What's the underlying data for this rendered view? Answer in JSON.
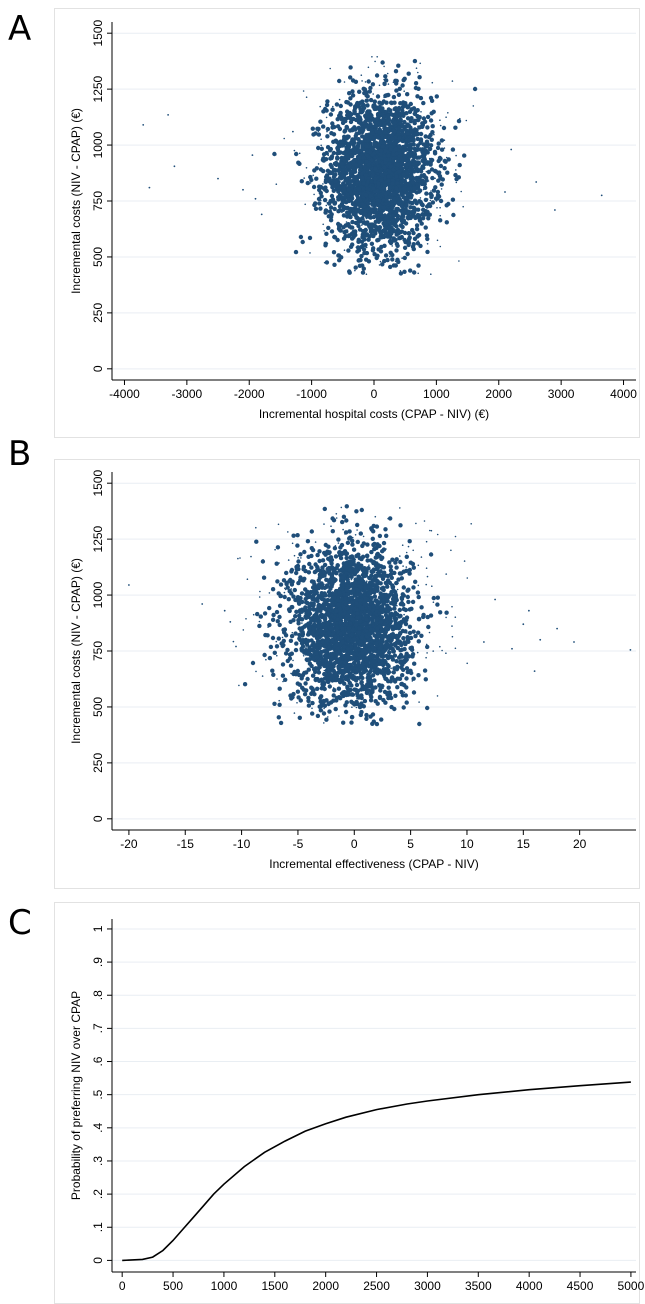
{
  "panels": {
    "a": {
      "letter": "A"
    },
    "b": {
      "letter": "B"
    },
    "c": {
      "letter": "C"
    }
  },
  "colors": {
    "scatter_fill": "#1f4e79",
    "gridline": "#e9eef3",
    "axis": "#000000",
    "curve": "#000000"
  },
  "chart_data": [
    {
      "id": "A",
      "type": "scatter",
      "title": "",
      "xlabel": "Incremental hospital costs (CPAP - NIV) (€)",
      "ylabel": "Incremental costs (NIV - CPAP) (€)",
      "xlim": [
        -4200,
        4200
      ],
      "ylim": [
        -50,
        1550
      ],
      "xticks": [
        -4000,
        -3000,
        -2000,
        -1000,
        0,
        1000,
        2000,
        3000,
        4000
      ],
      "xtick_labels": [
        "-4000",
        "-3000",
        "-2000",
        "-1000",
        "0",
        "1000",
        "2000",
        "3000",
        "4000"
      ],
      "yticks": [
        0,
        250,
        500,
        750,
        1000,
        1250,
        1500
      ],
      "ytick_labels": [
        "0",
        "250",
        "500",
        "750",
        "1000",
        "1250",
        "1500"
      ],
      "grid": true,
      "cloud": {
        "center": [
          100,
          880
        ],
        "spread": [
          420,
          170
        ],
        "extent_x": [
          -1600,
          1750
        ],
        "extent_y": [
          420,
          1410
        ]
      },
      "outliers": [
        [
          -3700,
          1090
        ],
        [
          -3300,
          1135
        ],
        [
          -3600,
          810
        ],
        [
          -3200,
          905
        ],
        [
          -2100,
          800
        ],
        [
          -1900,
          760
        ],
        [
          -1950,
          955
        ],
        [
          -1300,
          1060
        ],
        [
          -1800,
          690
        ],
        [
          2200,
          980
        ],
        [
          2600,
          835
        ],
        [
          2900,
          710
        ],
        [
          3650,
          775
        ],
        [
          2100,
          790
        ],
        [
          -2500,
          850
        ]
      ]
    },
    {
      "id": "B",
      "type": "scatter",
      "title": "",
      "xlabel": "Incremental effectiveness (CPAP - NIV)",
      "ylabel": "Incremental costs (NIV - CPAP) (€)",
      "xlim": [
        -21.5,
        25
      ],
      "ylim": [
        -50,
        1550
      ],
      "xticks": [
        -20,
        -15,
        -10,
        -5,
        0,
        5,
        10,
        15,
        20
      ],
      "xtick_labels": [
        "-20",
        "-15",
        "-10",
        "-5",
        "0",
        "5",
        "10",
        "15",
        "20"
      ],
      "yticks": [
        0,
        250,
        500,
        750,
        1000,
        1250,
        1500
      ],
      "ytick_labels": [
        "0",
        "250",
        "500",
        "750",
        "1000",
        "1250",
        "1500"
      ],
      "grid": true,
      "cloud": {
        "center": [
          -0.3,
          860
        ],
        "spread": [
          2.6,
          175
        ],
        "extent_x": [
          -11,
          13
        ],
        "extent_y": [
          420,
          1410
        ]
      },
      "outliers": [
        [
          -20,
          1045
        ],
        [
          -13.5,
          960
        ],
        [
          -11.5,
          930
        ],
        [
          -11,
          880
        ],
        [
          -10.5,
          770
        ],
        [
          11.5,
          790
        ],
        [
          14,
          760
        ],
        [
          15,
          870
        ],
        [
          15.5,
          930
        ],
        [
          16.5,
          800
        ],
        [
          18,
          850
        ],
        [
          19.5,
          790
        ],
        [
          24.5,
          755
        ],
        [
          16,
          660
        ],
        [
          12.5,
          980
        ]
      ]
    },
    {
      "id": "C",
      "type": "line",
      "title": "",
      "xlabel": "",
      "ylabel": "Probability of preferring NIV over CPAP",
      "xlim": [
        -100,
        5050
      ],
      "ylim": [
        -0.035,
        1.03
      ],
      "xticks": [
        0,
        500,
        1000,
        1500,
        2000,
        2500,
        3000,
        3500,
        4000,
        4500,
        5000
      ],
      "xtick_labels": [
        "0",
        "500",
        "1000",
        "1500",
        "2000",
        "2500",
        "3000",
        "3500",
        "4000",
        "4500",
        "5000"
      ],
      "yticks": [
        0,
        0.1,
        0.2,
        0.3,
        0.4,
        0.5,
        0.6,
        0.7,
        0.8,
        0.9,
        1
      ],
      "ytick_labels": [
        "0",
        ".1",
        ".2",
        ".3",
        ".4",
        ".5",
        ".6",
        ".7",
        ".8",
        ".9",
        "1"
      ],
      "grid": true,
      "series": [
        {
          "x": [
            0,
            200,
            300,
            400,
            500,
            600,
            700,
            800,
            900,
            1000,
            1200,
            1400,
            1600,
            1800,
            2000,
            2200,
            2500,
            2800,
            3000,
            3500,
            4000,
            4500,
            5000
          ],
          "y": [
            0,
            0.003,
            0.01,
            0.03,
            0.06,
            0.095,
            0.13,
            0.165,
            0.2,
            0.23,
            0.283,
            0.326,
            0.36,
            0.39,
            0.412,
            0.432,
            0.455,
            0.472,
            0.481,
            0.5,
            0.515,
            0.527,
            0.538
          ]
        }
      ]
    }
  ]
}
